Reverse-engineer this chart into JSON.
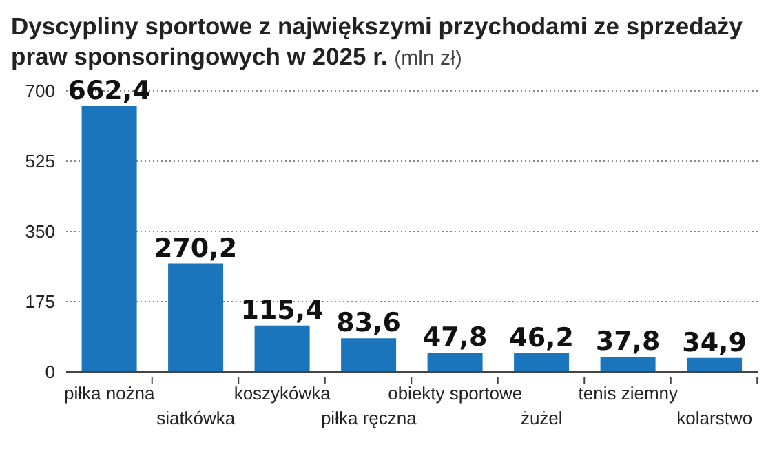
{
  "chart_data": {
    "type": "bar",
    "title": "Dyscypliny sportowe z największymi przychodami ze sprzedaży praw sponsoringowych w 2025 r.",
    "ylabel": "(mln zł)",
    "categories": [
      "piłka nożna",
      "siatkówka",
      "koszykówka",
      "piłka ręczna",
      "obiekty sportowe",
      "żużel",
      "tenis ziemny",
      "kolarstwo"
    ],
    "values": [
      662.4,
      270.2,
      115.4,
      83.6,
      47.8,
      46.2,
      37.8,
      34.9
    ],
    "value_labels": [
      "662,4",
      "270,2",
      "115,4",
      "83,6",
      "47,8",
      "46,2",
      "37,8",
      "34,9"
    ],
    "color": "#1b75bc",
    "ylim": [
      0,
      700
    ],
    "yticks": [
      0,
      175,
      350,
      525,
      700
    ],
    "grid": "y"
  }
}
